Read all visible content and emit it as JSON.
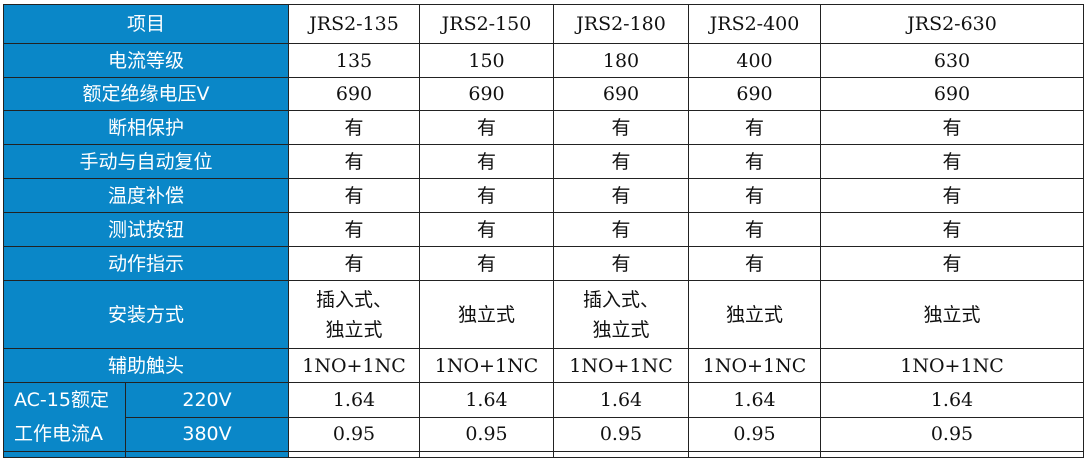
{
  "header": {
    "label": "项目",
    "models": [
      "JRS2-135",
      "JRS2-150",
      "JRS2-180",
      "JRS2-400",
      "JRS2-630"
    ]
  },
  "rows": [
    {
      "label": "电流等级",
      "values": [
        "135",
        "150",
        "180",
        "400",
        "630"
      ]
    },
    {
      "label": "额定绝缘电压V",
      "values": [
        "690",
        "690",
        "690",
        "690",
        "690"
      ]
    },
    {
      "label": "断相保护",
      "values": [
        "有",
        "有",
        "有",
        "有",
        "有"
      ]
    },
    {
      "label": "手动与自动复位",
      "values": [
        "有",
        "有",
        "有",
        "有",
        "有"
      ]
    },
    {
      "label": "温度补偿",
      "values": [
        "有",
        "有",
        "有",
        "有",
        "有"
      ]
    },
    {
      "label": "测试按钮",
      "values": [
        "有",
        "有",
        "有",
        "有",
        "有"
      ]
    },
    {
      "label": "动作指示",
      "values": [
        "有",
        "有",
        "有",
        "有",
        "有"
      ]
    },
    {
      "label": "安装方式",
      "values": [
        "插入式、独立式",
        "独立式",
        "插入式、独立式",
        "独立式",
        "独立式"
      ]
    },
    {
      "label": "辅助触头",
      "values": [
        "1NO+1NC",
        "1NO+1NC",
        "1NO+1NC",
        "1NO+1NC",
        "1NO+1NC"
      ]
    }
  ],
  "ac15": {
    "label_line1": "AC-15额定",
    "label_line2": "工作电流A",
    "rows": [
      {
        "voltage": "220V",
        "values": [
          "1.64",
          "1.64",
          "1.64",
          "1.64",
          "1.64"
        ]
      },
      {
        "voltage": "380V",
        "values": [
          "0.95",
          "0.95",
          "0.95",
          "0.95",
          "0.95"
        ]
      }
    ]
  },
  "colors": {
    "header_bg": "#0a87c8",
    "header_text": "#ffffff"
  }
}
